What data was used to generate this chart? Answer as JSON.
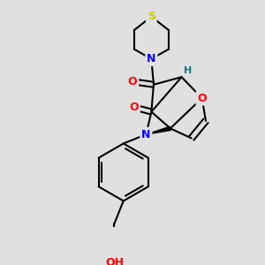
{
  "bg_color": "#e0e0e0",
  "atom_colors": {
    "S": "#cccc00",
    "N": "#0000ff",
    "O": "#ff0000",
    "H": "#008080",
    "C": "#000000"
  },
  "bond_color": "#000000",
  "bond_width": 1.5,
  "fig_size": [
    3.0,
    3.0
  ],
  "dpi": 100
}
